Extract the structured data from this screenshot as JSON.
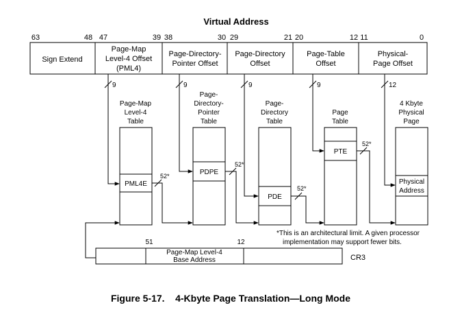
{
  "title": "Virtual Address",
  "bit_labels": [
    "63",
    "48",
    "47",
    "39",
    "38",
    "30",
    "29",
    "21",
    "20",
    "12",
    "11",
    "0"
  ],
  "fields": [
    {
      "lines": [
        "Sign Extend"
      ]
    },
    {
      "lines": [
        "Page-Map",
        "Level-4 Offset",
        "(PML4)"
      ]
    },
    {
      "lines": [
        "Page-Directory-",
        "Pointer Offset"
      ]
    },
    {
      "lines": [
        "Page-Directory",
        "Offset"
      ]
    },
    {
      "lines": [
        "Page-Table",
        "Offset"
      ]
    },
    {
      "lines": [
        "Physical-",
        "Page Offset"
      ]
    }
  ],
  "offset_widths": [
    "9",
    "9",
    "9",
    "9",
    "12"
  ],
  "tables": [
    {
      "title_lines": [
        "Page-Map",
        "Level-4",
        "Table"
      ],
      "entry_lines": [
        "PML4E"
      ]
    },
    {
      "title_lines": [
        "Page-",
        "Directory-",
        "Pointer",
        "Table"
      ],
      "entry_lines": [
        "PDPE"
      ]
    },
    {
      "title_lines": [
        "Page-",
        "Directory",
        "Table"
      ],
      "entry_lines": [
        "PDE"
      ]
    },
    {
      "title_lines": [
        "Page",
        "Table"
      ],
      "entry_lines": [
        "PTE"
      ]
    },
    {
      "title_lines": [
        "4 Kbyte",
        "Physical",
        "Page"
      ],
      "entry_lines": [
        "Physical",
        "Address"
      ]
    }
  ],
  "pointer_width": "52*",
  "footnote_lines": [
    "*This is an architectural limit. A given processor",
    "implementation may support fewer bits."
  ],
  "cr3": {
    "bit_high": "51",
    "bit_low": "12",
    "field_lines": [
      "Page-Map Level-4",
      "Base Address"
    ],
    "label": "CR3"
  },
  "caption": "Figure 5-17.    4-Kbyte Page Translation—Long Mode"
}
